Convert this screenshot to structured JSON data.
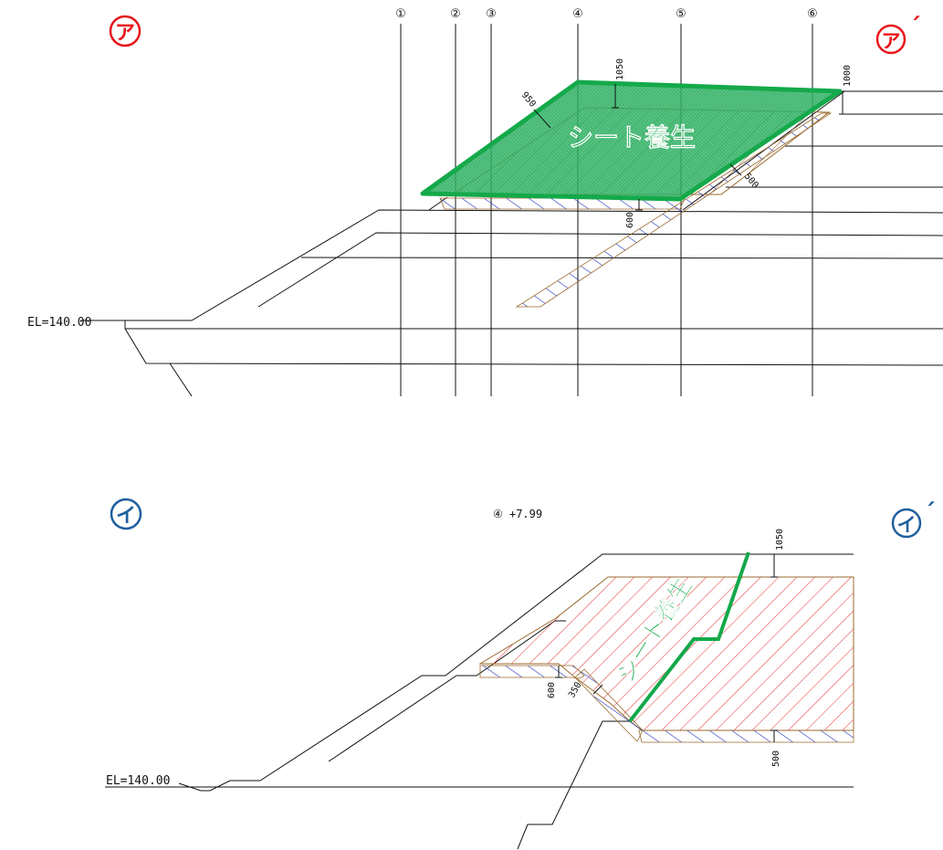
{
  "section_a": {
    "marker_left": "ア",
    "marker_right": "ア",
    "marker_right_prime": "´",
    "station_labels": [
      "①",
      "②",
      "③",
      "④",
      "⑤",
      "⑥"
    ],
    "elevation_label": "EL=140.00",
    "sheet_label": "シート養生",
    "dims": {
      "d1050": "1050",
      "d1000": "1000",
      "d950": "950",
      "d500": "500",
      "d600": "600"
    }
  },
  "section_b": {
    "marker_left": "イ",
    "marker_right": "イ",
    "marker_right_prime": "´",
    "station_caption": "④ +7.99",
    "elevation_label": "EL=140.00",
    "sheet_label": "シート養生",
    "dims": {
      "d1050": "1050",
      "d600": "600",
      "d350": "350",
      "d500": "500"
    }
  },
  "colors": {
    "red_marker": "#e8161b",
    "blue_marker": "#1f5f9e",
    "sheet_green": "#14a94a",
    "sheet_fill": "#2fb864",
    "red_hatch": "#e83030",
    "blue_hatch": "#1c2fbf",
    "brown_outline": "#9b6a2e",
    "line": "#111111"
  }
}
